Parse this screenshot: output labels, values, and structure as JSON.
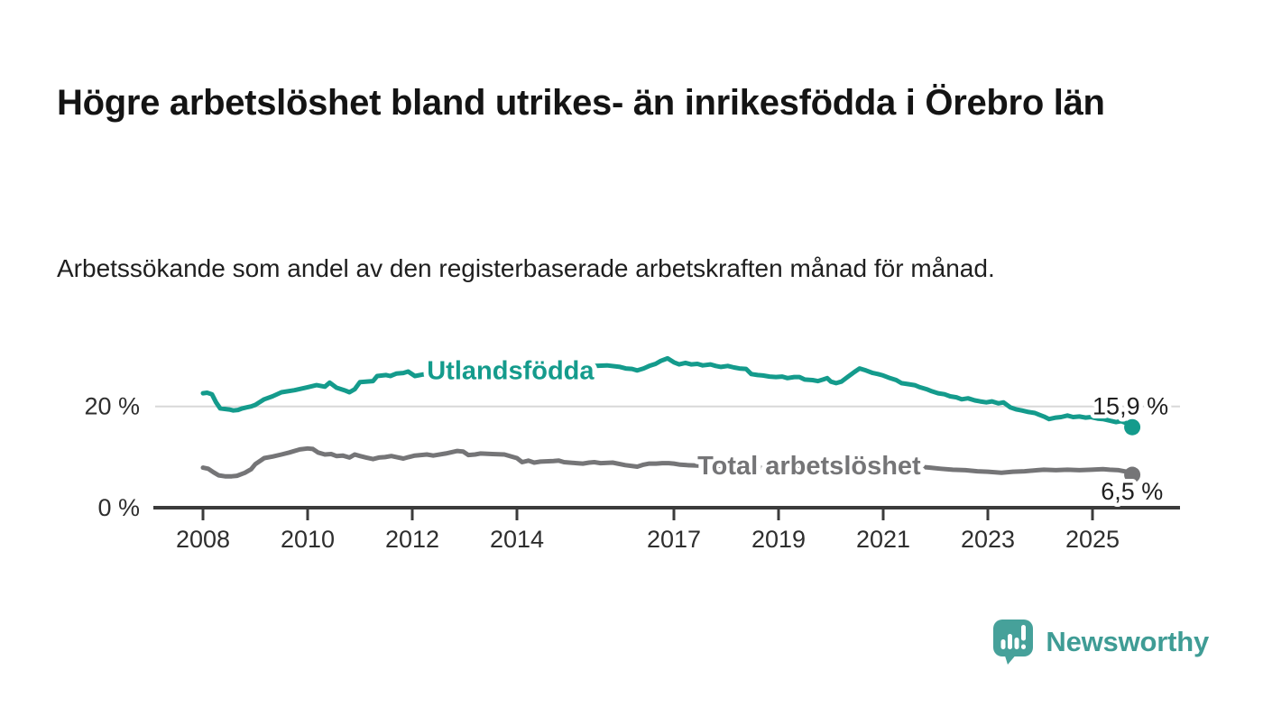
{
  "header": {
    "title": "Högre arbetslöshet bland utrikes- än inrikesfödda i Örebro län",
    "subtitle": "Arbetssökande som andel av den registerbaserade arbetskraften månad för månad."
  },
  "chart_data": {
    "type": "line",
    "unit": "%",
    "grid": "single horizontal gridline at 20 %",
    "x_axis": {
      "range": [
        2007.9,
        2026.6
      ],
      "tick_years": [
        2008,
        2010,
        2012,
        2014,
        2017,
        2019,
        2021,
        2023,
        2025
      ],
      "tick_labels": [
        "2008",
        "2010",
        "2012",
        "2014",
        "2017",
        "2019",
        "2021",
        "2023",
        "2025"
      ]
    },
    "y_axis": {
      "range": [
        0,
        31
      ],
      "ticks": [
        {
          "value": 0,
          "label": "0 %"
        },
        {
          "value": 20,
          "label": "20 %",
          "gridline": true
        }
      ]
    },
    "colors": {
      "axis": "#3b3b3b",
      "gridline": "#d8d8d8",
      "tick_label": "#2e2e2e",
      "value_label": "#1f1f1f"
    },
    "series": [
      {
        "name": "Utlandsfödda",
        "color": "#149b8c",
        "end_label": "15,9 %",
        "end_value": 15.9,
        "label_anchor": {
          "year": 2012.28,
          "pct": 27.2
        },
        "end_label_anchor": {
          "year": 2026.45,
          "pct": 20.0
        },
        "points": [
          [
            2008.0,
            22.6
          ],
          [
            2008.08,
            22.7
          ],
          [
            2008.17,
            22.4
          ],
          [
            2008.25,
            20.8
          ],
          [
            2008.33,
            19.6
          ],
          [
            2008.5,
            19.4
          ],
          [
            2008.58,
            19.2
          ],
          [
            2008.67,
            19.3
          ],
          [
            2008.75,
            19.6
          ],
          [
            2008.83,
            19.8
          ],
          [
            2008.92,
            20.0
          ],
          [
            2009.0,
            20.3
          ],
          [
            2009.17,
            21.4
          ],
          [
            2009.33,
            22.0
          ],
          [
            2009.5,
            22.8
          ],
          [
            2009.75,
            23.2
          ],
          [
            2010.0,
            23.8
          ],
          [
            2010.17,
            24.2
          ],
          [
            2010.33,
            23.9
          ],
          [
            2010.42,
            24.7
          ],
          [
            2010.55,
            23.7
          ],
          [
            2010.7,
            23.2
          ],
          [
            2010.8,
            22.8
          ],
          [
            2010.9,
            23.4
          ],
          [
            2011.0,
            24.8
          ],
          [
            2011.25,
            25.0
          ],
          [
            2011.33,
            26.0
          ],
          [
            2011.5,
            26.2
          ],
          [
            2011.58,
            26.0
          ],
          [
            2011.7,
            26.5
          ],
          [
            2011.83,
            26.6
          ],
          [
            2011.92,
            26.9
          ],
          [
            2012.05,
            26.0
          ],
          [
            2012.2,
            26.3
          ],
          [
            2012.5,
            26.4
          ],
          [
            2012.75,
            26.6
          ],
          [
            2013.0,
            26.7
          ],
          [
            2013.5,
            27.0
          ],
          [
            2014.0,
            27.2
          ],
          [
            2014.5,
            27.4
          ],
          [
            2015.0,
            27.7
          ],
          [
            2015.5,
            28.0
          ],
          [
            2015.72,
            28.1
          ],
          [
            2015.97,
            27.8
          ],
          [
            2016.08,
            27.5
          ],
          [
            2016.2,
            27.4
          ],
          [
            2016.3,
            27.1
          ],
          [
            2016.42,
            27.5
          ],
          [
            2016.53,
            28.0
          ],
          [
            2016.65,
            28.4
          ],
          [
            2016.75,
            29.0
          ],
          [
            2016.88,
            29.5
          ],
          [
            2017.0,
            28.7
          ],
          [
            2017.1,
            28.3
          ],
          [
            2017.22,
            28.6
          ],
          [
            2017.33,
            28.3
          ],
          [
            2017.45,
            28.4
          ],
          [
            2017.55,
            28.1
          ],
          [
            2017.7,
            28.3
          ],
          [
            2017.8,
            28.0
          ],
          [
            2017.9,
            27.8
          ],
          [
            2018.03,
            28.0
          ],
          [
            2018.15,
            27.7
          ],
          [
            2018.25,
            27.5
          ],
          [
            2018.38,
            27.4
          ],
          [
            2018.48,
            26.4
          ],
          [
            2018.6,
            26.2
          ],
          [
            2018.7,
            26.1
          ],
          [
            2018.83,
            25.9
          ],
          [
            2018.95,
            25.8
          ],
          [
            2019.07,
            25.9
          ],
          [
            2019.17,
            25.6
          ],
          [
            2019.3,
            25.8
          ],
          [
            2019.4,
            25.8
          ],
          [
            2019.5,
            25.3
          ],
          [
            2019.65,
            25.2
          ],
          [
            2019.75,
            25.0
          ],
          [
            2019.85,
            25.3
          ],
          [
            2019.93,
            25.6
          ],
          [
            2020.0,
            24.9
          ],
          [
            2020.1,
            24.6
          ],
          [
            2020.2,
            24.9
          ],
          [
            2020.33,
            25.9
          ],
          [
            2020.45,
            26.8
          ],
          [
            2020.55,
            27.5
          ],
          [
            2020.67,
            27.1
          ],
          [
            2020.8,
            26.6
          ],
          [
            2020.9,
            26.4
          ],
          [
            2021.0,
            26.1
          ],
          [
            2021.13,
            25.6
          ],
          [
            2021.25,
            25.2
          ],
          [
            2021.35,
            24.6
          ],
          [
            2021.48,
            24.4
          ],
          [
            2021.6,
            24.2
          ],
          [
            2021.7,
            23.8
          ],
          [
            2021.83,
            23.4
          ],
          [
            2021.93,
            23.0
          ],
          [
            2022.05,
            22.6
          ],
          [
            2022.17,
            22.4
          ],
          [
            2022.28,
            22.0
          ],
          [
            2022.4,
            21.8
          ],
          [
            2022.5,
            21.4
          ],
          [
            2022.62,
            21.6
          ],
          [
            2022.75,
            21.2
          ],
          [
            2022.85,
            21.0
          ],
          [
            2022.97,
            20.8
          ],
          [
            2023.08,
            21.0
          ],
          [
            2023.2,
            20.6
          ],
          [
            2023.3,
            20.8
          ],
          [
            2023.43,
            19.8
          ],
          [
            2023.55,
            19.4
          ],
          [
            2023.65,
            19.2
          ],
          [
            2023.78,
            18.9
          ],
          [
            2023.9,
            18.7
          ],
          [
            2023.97,
            18.4
          ],
          [
            2024.07,
            18.0
          ],
          [
            2024.17,
            17.5
          ],
          [
            2024.3,
            17.8
          ],
          [
            2024.4,
            17.9
          ],
          [
            2024.52,
            18.2
          ],
          [
            2024.63,
            17.9
          ],
          [
            2024.75,
            18.0
          ],
          [
            2024.87,
            17.8
          ],
          [
            2024.97,
            17.9
          ],
          [
            2025.1,
            17.6
          ],
          [
            2025.2,
            17.5
          ],
          [
            2025.33,
            17.2
          ],
          [
            2025.45,
            16.9
          ],
          [
            2025.55,
            17.1
          ],
          [
            2025.67,
            16.6
          ],
          [
            2025.76,
            15.9
          ]
        ]
      },
      {
        "name": "Total arbetslöshet",
        "color": "#757577",
        "end_label": "6,5 %",
        "end_value": 6.5,
        "label_anchor": {
          "year": 2017.45,
          "pct": 8.4
        },
        "end_label_anchor": {
          "year": 2026.35,
          "pct": 3.2
        },
        "points": [
          [
            2008.0,
            7.9
          ],
          [
            2008.1,
            7.7
          ],
          [
            2008.2,
            7.0
          ],
          [
            2008.3,
            6.4
          ],
          [
            2008.42,
            6.2
          ],
          [
            2008.55,
            6.2
          ],
          [
            2008.65,
            6.3
          ],
          [
            2008.8,
            6.9
          ],
          [
            2008.92,
            7.6
          ],
          [
            2009.0,
            8.6
          ],
          [
            2009.17,
            9.8
          ],
          [
            2009.33,
            10.1
          ],
          [
            2009.5,
            10.5
          ],
          [
            2009.65,
            10.9
          ],
          [
            2009.85,
            11.5
          ],
          [
            2010.0,
            11.7
          ],
          [
            2010.1,
            11.6
          ],
          [
            2010.2,
            10.9
          ],
          [
            2010.33,
            10.5
          ],
          [
            2010.45,
            10.6
          ],
          [
            2010.55,
            10.2
          ],
          [
            2010.67,
            10.3
          ],
          [
            2010.8,
            9.9
          ],
          [
            2010.9,
            10.5
          ],
          [
            2011.0,
            10.2
          ],
          [
            2011.12,
            9.9
          ],
          [
            2011.25,
            9.6
          ],
          [
            2011.36,
            9.9
          ],
          [
            2011.48,
            10.0
          ],
          [
            2011.6,
            10.2
          ],
          [
            2011.7,
            10.0
          ],
          [
            2011.83,
            9.7
          ],
          [
            2011.93,
            10.0
          ],
          [
            2012.05,
            10.3
          ],
          [
            2012.28,
            10.5
          ],
          [
            2012.4,
            10.3
          ],
          [
            2012.64,
            10.7
          ],
          [
            2012.86,
            11.2
          ],
          [
            2012.97,
            11.1
          ],
          [
            2013.07,
            10.4
          ],
          [
            2013.2,
            10.5
          ],
          [
            2013.3,
            10.7
          ],
          [
            2013.53,
            10.6
          ],
          [
            2013.76,
            10.5
          ],
          [
            2014.0,
            9.8
          ],
          [
            2014.1,
            9.0
          ],
          [
            2014.22,
            9.3
          ],
          [
            2014.33,
            8.9
          ],
          [
            2014.45,
            9.1
          ],
          [
            2014.7,
            9.2
          ],
          [
            2014.8,
            9.3
          ],
          [
            2014.9,
            9.0
          ],
          [
            2015.14,
            8.8
          ],
          [
            2015.26,
            8.7
          ],
          [
            2015.38,
            8.9
          ],
          [
            2015.48,
            9.0
          ],
          [
            2015.6,
            8.8
          ],
          [
            2015.83,
            8.9
          ],
          [
            2016.07,
            8.4
          ],
          [
            2016.3,
            8.1
          ],
          [
            2016.42,
            8.5
          ],
          [
            2016.53,
            8.7
          ],
          [
            2016.66,
            8.7
          ],
          [
            2016.78,
            8.8
          ],
          [
            2016.9,
            8.8
          ],
          [
            2017.0,
            8.7
          ],
          [
            2017.12,
            8.5
          ],
          [
            2017.25,
            8.4
          ],
          [
            2017.5,
            8.3
          ],
          [
            2017.75,
            8.2
          ],
          [
            2018.0,
            8.1
          ],
          [
            2018.3,
            8.0
          ],
          [
            2018.6,
            7.9
          ],
          [
            2019.0,
            7.8
          ],
          [
            2019.5,
            7.7
          ],
          [
            2019.9,
            7.8
          ],
          [
            2020.2,
            8.4
          ],
          [
            2020.4,
            9.2
          ],
          [
            2020.7,
            9.1
          ],
          [
            2021.0,
            8.8
          ],
          [
            2021.3,
            8.5
          ],
          [
            2021.6,
            8.2
          ],
          [
            2021.9,
            7.9
          ],
          [
            2022.1,
            7.7
          ],
          [
            2022.33,
            7.5
          ],
          [
            2022.57,
            7.4
          ],
          [
            2022.8,
            7.2
          ],
          [
            2023.0,
            7.1
          ],
          [
            2023.26,
            6.9
          ],
          [
            2023.48,
            7.1
          ],
          [
            2023.7,
            7.2
          ],
          [
            2023.95,
            7.4
          ],
          [
            2024.07,
            7.5
          ],
          [
            2024.3,
            7.4
          ],
          [
            2024.52,
            7.5
          ],
          [
            2024.75,
            7.4
          ],
          [
            2024.98,
            7.5
          ],
          [
            2025.2,
            7.6
          ],
          [
            2025.33,
            7.5
          ],
          [
            2025.5,
            7.4
          ],
          [
            2025.65,
            7.1
          ],
          [
            2025.76,
            6.5
          ]
        ]
      }
    ]
  },
  "footer": {
    "brand": "Newsworthy",
    "brand_color": "#3f9c95",
    "logo_icon": "speech-bubble-bar-chart-exclamation"
  }
}
